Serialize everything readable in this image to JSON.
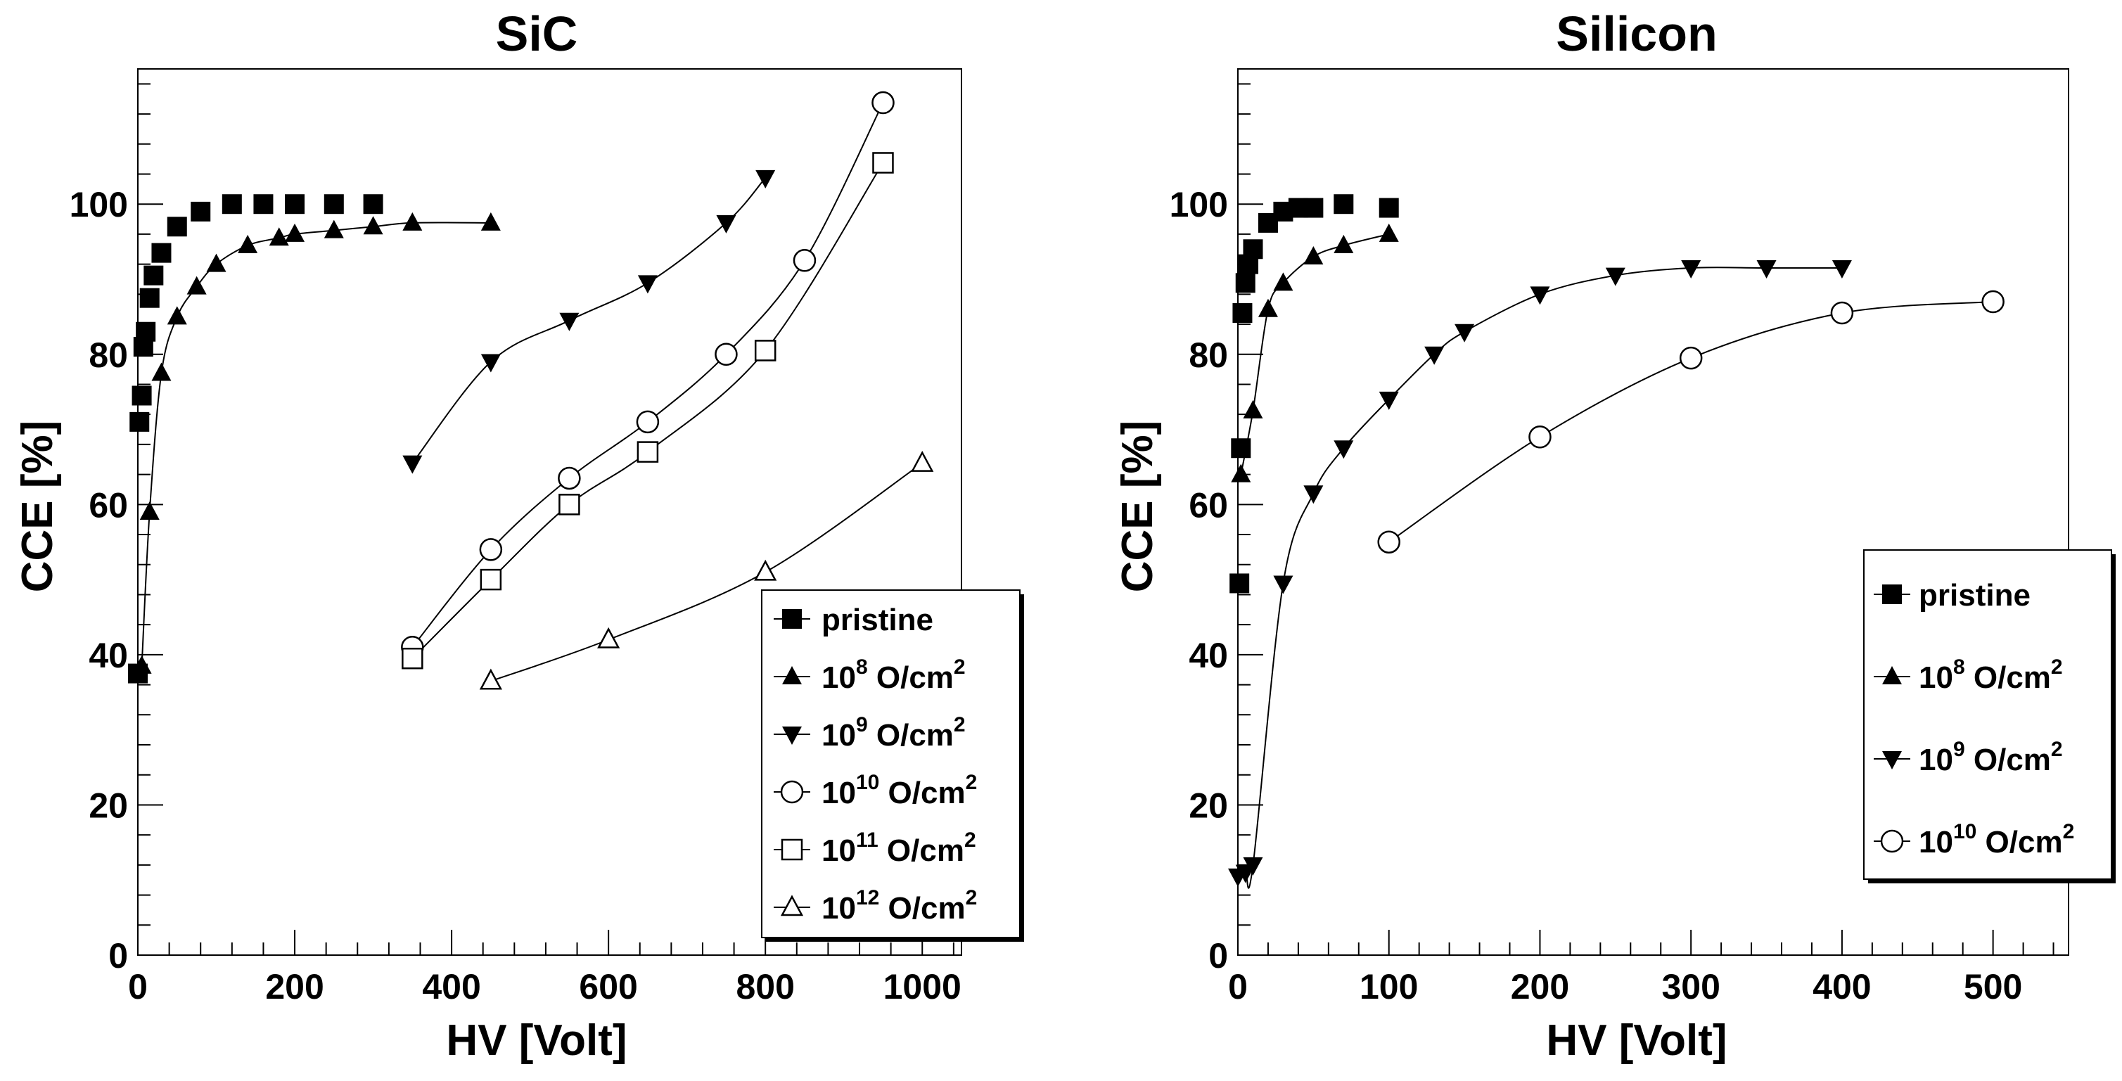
{
  "chart_data": [
    {
      "type": "scatter",
      "title": "SiC",
      "xlabel": "HV [Volt]",
      "ylabel": "CCE [%]",
      "xlim": [
        0,
        1050
      ],
      "ylim": [
        0,
        118
      ],
      "xticks": [
        0,
        200,
        400,
        600,
        800,
        1000
      ],
      "yticks": [
        0,
        20,
        40,
        60,
        80,
        100
      ],
      "xtick_labels": [
        "0",
        "200",
        "400",
        "600",
        "800",
        "1000"
      ],
      "ytick_labels": [
        "0",
        "20",
        "40",
        "60",
        "80",
        "100"
      ],
      "legend_position": "bottom-right",
      "series": [
        {
          "name": "pristine",
          "base": "",
          "exp": "",
          "unit": "",
          "marker": "square-filled",
          "curve": false,
          "x": [
            0,
            2,
            5,
            7,
            10,
            15,
            20,
            30,
            50,
            80,
            120,
            160,
            200,
            250,
            300
          ],
          "y": [
            37.5,
            71,
            74.5,
            81,
            83,
            87.5,
            90.5,
            93.5,
            97,
            99,
            100,
            100,
            100,
            100,
            100
          ]
        },
        {
          "name": "",
          "base": "10",
          "exp": "8",
          "unit": " O/cm",
          "marker": "triangle-up-filled",
          "curve": true,
          "x": [
            5,
            15,
            30,
            50,
            75,
            100,
            140,
            180,
            200,
            250,
            300,
            350,
            450
          ],
          "y": [
            38.5,
            59,
            77.5,
            85,
            89,
            92,
            94.5,
            95.5,
            96,
            96.5,
            97,
            97.5,
            97.5
          ]
        },
        {
          "name": "",
          "base": "10",
          "exp": "9",
          "unit": " O/cm",
          "marker": "triangle-down-filled",
          "curve": true,
          "x": [
            350,
            450,
            550,
            650,
            750,
            800
          ],
          "y": [
            65.5,
            79,
            84.5,
            89.5,
            97.5,
            103.5
          ]
        },
        {
          "name": "",
          "base": "10",
          "exp": "10",
          "unit": " O/cm",
          "marker": "circle-open",
          "curve": true,
          "x": [
            350,
            450,
            550,
            650,
            750,
            850,
            950
          ],
          "y": [
            41,
            54,
            63.5,
            71,
            80,
            92.5,
            113.5
          ]
        },
        {
          "name": "",
          "base": "10",
          "exp": "11",
          "unit": " O/cm",
          "marker": "square-open",
          "curve": true,
          "x": [
            350,
            450,
            550,
            650,
            800,
            950
          ],
          "y": [
            39.5,
            50,
            60,
            67,
            80.5,
            105.5
          ]
        },
        {
          "name": "",
          "base": "10",
          "exp": "12",
          "unit": " O/cm",
          "marker": "triangle-up-open",
          "curve": true,
          "x": [
            450,
            600,
            800,
            1000
          ],
          "y": [
            36.5,
            42,
            51,
            65.5
          ]
        }
      ]
    },
    {
      "type": "scatter",
      "title": "Silicon",
      "xlabel": "HV [Volt]",
      "ylabel": "CCE [%]",
      "xlim": [
        0,
        550
      ],
      "ylim": [
        0,
        118
      ],
      "xticks": [
        0,
        100,
        200,
        300,
        400,
        500
      ],
      "yticks": [
        0,
        20,
        40,
        60,
        80,
        100
      ],
      "xtick_labels": [
        "0",
        "100",
        "200",
        "300",
        "400",
        "500"
      ],
      "ytick_labels": [
        "0",
        "20",
        "40",
        "60",
        "80",
        "100"
      ],
      "legend_position": "right",
      "series": [
        {
          "name": "pristine",
          "base": "",
          "exp": "",
          "unit": "",
          "marker": "square-filled",
          "curve": false,
          "x": [
            1,
            2,
            3,
            5,
            7,
            10,
            20,
            30,
            40,
            50,
            70,
            100
          ],
          "y": [
            49.5,
            67.5,
            85.5,
            89.5,
            92,
            94,
            97.5,
            99,
            99.5,
            99.5,
            100,
            99.5
          ]
        },
        {
          "name": "",
          "base": "10",
          "exp": "8",
          "unit": " O/cm",
          "marker": "triangle-up-filled",
          "curve": true,
          "x": [
            2,
            10,
            20,
            30,
            50,
            70,
            100
          ],
          "y": [
            64,
            72.5,
            86,
            89.5,
            93,
            94.5,
            96
          ]
        },
        {
          "name": "",
          "base": "10",
          "exp": "9",
          "unit": " O/cm",
          "marker": "triangle-down-filled",
          "curve": true,
          "x": [
            0,
            5,
            10,
            30,
            50,
            70,
            100,
            130,
            150,
            200,
            250,
            300,
            350,
            400
          ],
          "y": [
            10.5,
            11,
            12,
            49.5,
            61.5,
            67.5,
            74,
            80,
            83,
            88,
            90.5,
            91.5,
            91.5,
            91.5
          ]
        },
        {
          "name": "",
          "base": "10",
          "exp": "10",
          "unit": " O/cm",
          "marker": "circle-open",
          "curve": true,
          "x": [
            100,
            200,
            300,
            400,
            500
          ],
          "y": [
            55,
            69,
            79.5,
            85.5,
            87
          ]
        }
      ]
    }
  ]
}
